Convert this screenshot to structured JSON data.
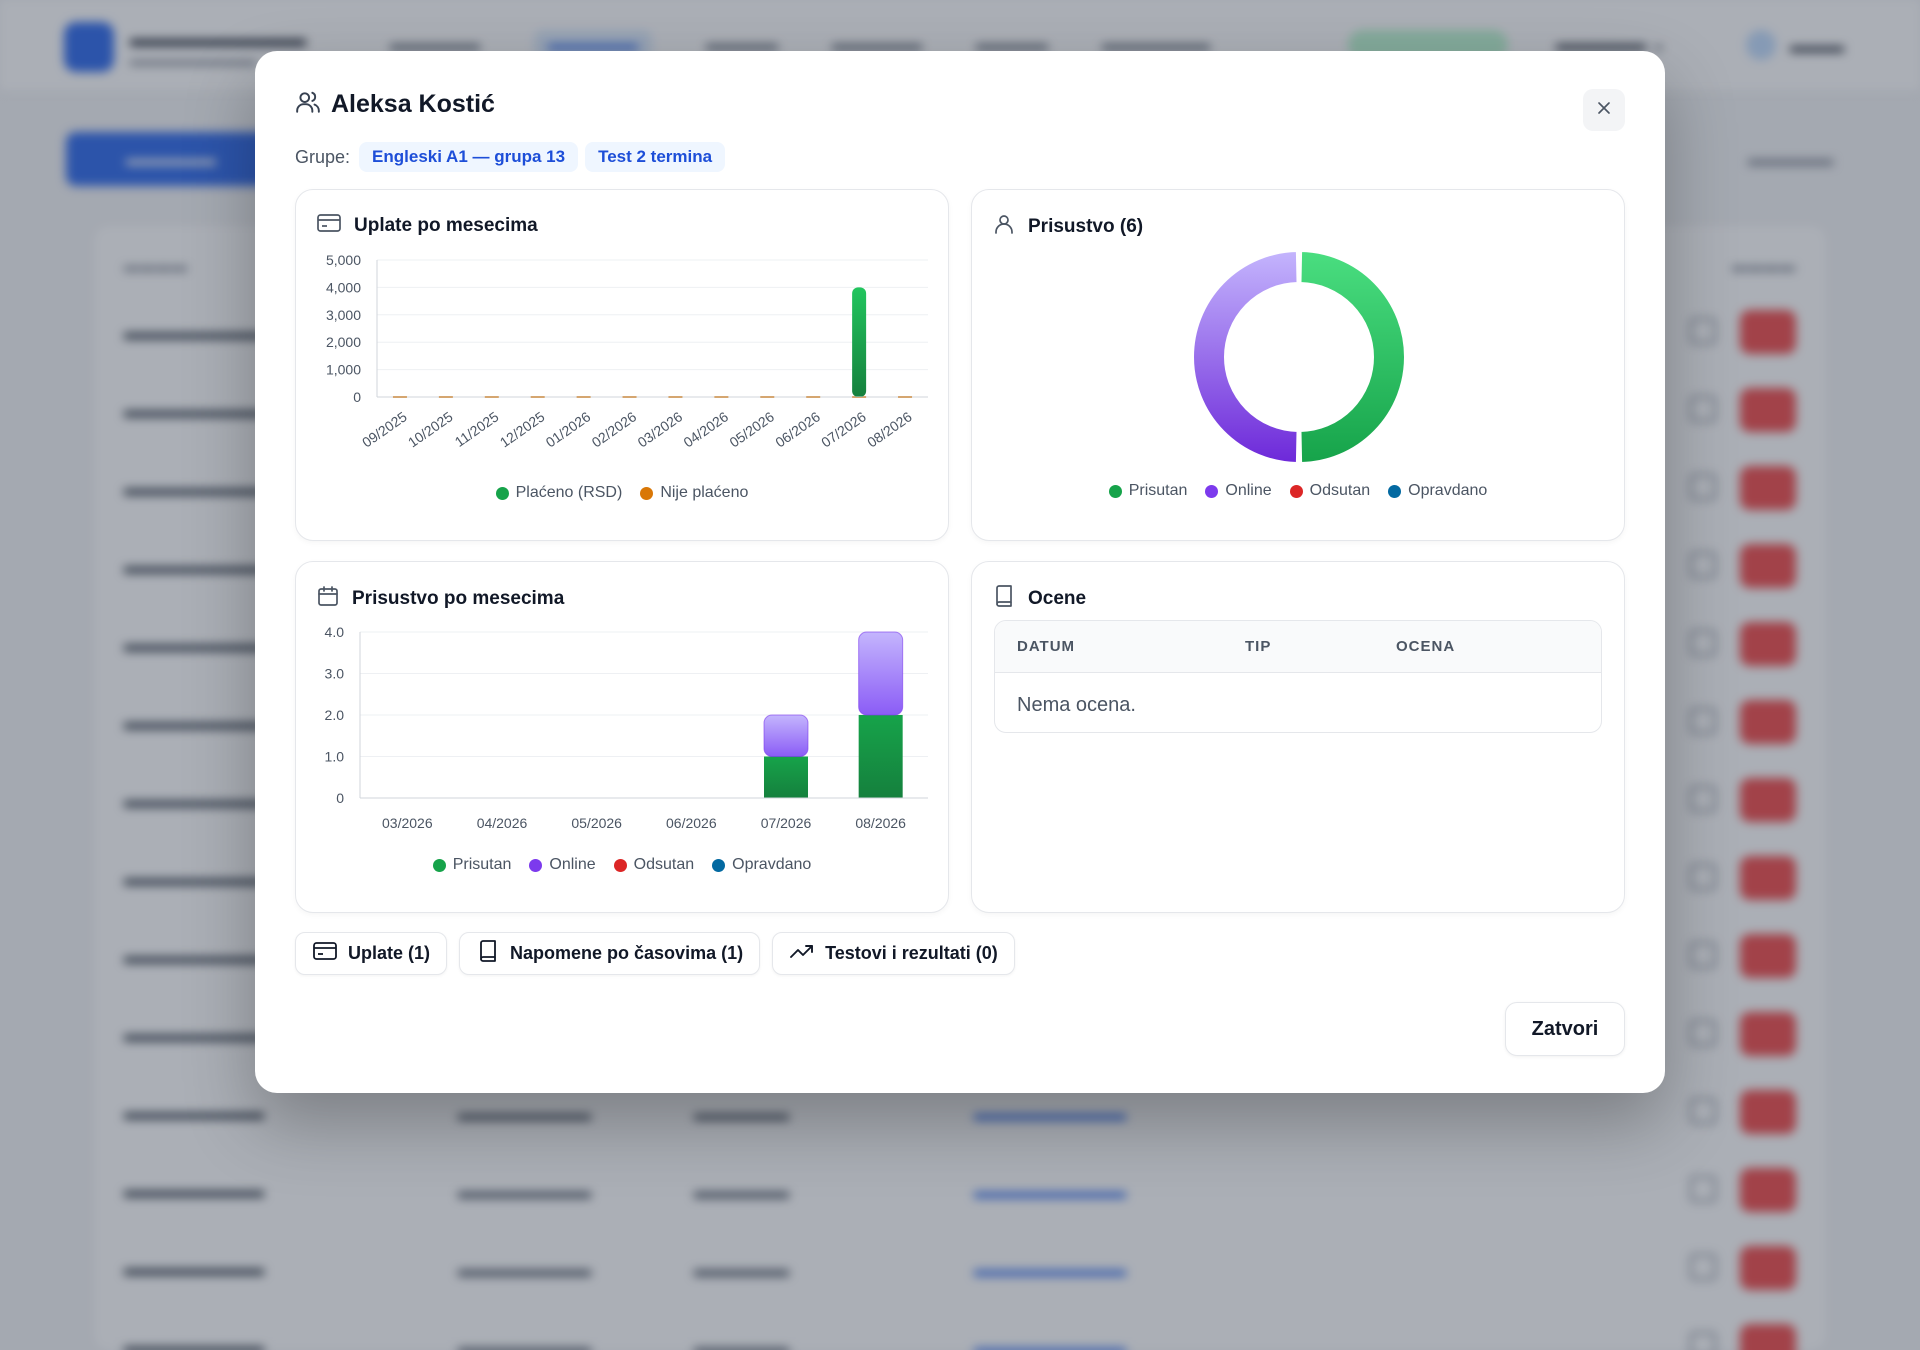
{
  "modal": {
    "title": "Aleksa Kostić",
    "groups_label": "Grupe:",
    "groups": [
      "Engleski A1 — grupa 13",
      "Test 2 termina"
    ],
    "close_label": "Zatvori"
  },
  "payments_card": {
    "title": "Uplate po mesecima",
    "legend": [
      {
        "label": "Plaćeno (RSD)",
        "color": "#16a34a"
      },
      {
        "label": "Nije plaćeno",
        "color": "#d97706"
      }
    ]
  },
  "attendance_card": {
    "title": "Prisustvo (6)",
    "legend": [
      {
        "label": "Prisutan",
        "color": "#16a34a"
      },
      {
        "label": "Online",
        "color": "#7c3aed"
      },
      {
        "label": "Odsutan",
        "color": "#dc2626"
      },
      {
        "label": "Opravdano",
        "color": "#0369a1"
      }
    ]
  },
  "monthly_attendance_card": {
    "title": "Prisustvo po mesecima",
    "legend": [
      {
        "label": "Prisutan",
        "color": "#16a34a"
      },
      {
        "label": "Online",
        "color": "#7c3aed"
      },
      {
        "label": "Odsutan",
        "color": "#dc2626"
      },
      {
        "label": "Opravdano",
        "color": "#0369a1"
      }
    ]
  },
  "grades_card": {
    "title": "Ocene",
    "columns": [
      "DATUM",
      "TIP",
      "OCENA"
    ],
    "empty_text": "Nema ocena."
  },
  "tabs": [
    {
      "label": "Uplate (1)",
      "icon": "credit-card-icon"
    },
    {
      "label": "Napomene po časovima (1)",
      "icon": "book-icon"
    },
    {
      "label": "Testovi i rezultati (0)",
      "icon": "trending-up-icon"
    }
  ],
  "chart_data": [
    {
      "type": "bar",
      "title": "Uplate po mesecima",
      "categories": [
        "09/2025",
        "10/2025",
        "11/2025",
        "12/2025",
        "01/2026",
        "02/2026",
        "03/2026",
        "04/2026",
        "05/2026",
        "06/2026",
        "07/2026",
        "08/2026"
      ],
      "series": [
        {
          "name": "Plaćeno (RSD)",
          "values": [
            0,
            0,
            0,
            0,
            0,
            0,
            0,
            0,
            0,
            0,
            4000,
            0
          ]
        },
        {
          "name": "Nije plaćeno",
          "values": [
            0,
            0,
            0,
            0,
            0,
            0,
            0,
            0,
            0,
            0,
            0,
            0
          ]
        }
      ],
      "yticks": [
        "0",
        "1,000",
        "2,000",
        "3,000",
        "4,000",
        "5,000"
      ],
      "ylim": [
        0,
        5000
      ],
      "legend": "bottom",
      "grid": true
    },
    {
      "type": "pie",
      "title": "Prisustvo (6)",
      "categories": [
        "Prisutan",
        "Online",
        "Odsutan",
        "Opravdano"
      ],
      "values": [
        3,
        3,
        0,
        0
      ],
      "donut": true,
      "legend": "bottom"
    },
    {
      "type": "bar",
      "stacked": true,
      "title": "Prisustvo po mesecima",
      "categories": [
        "03/2026",
        "04/2026",
        "05/2026",
        "06/2026",
        "07/2026",
        "08/2026"
      ],
      "series": [
        {
          "name": "Prisutan",
          "values": [
            0,
            0,
            0,
            0,
            1,
            2
          ]
        },
        {
          "name": "Online",
          "values": [
            0,
            0,
            0,
            0,
            1,
            2
          ]
        },
        {
          "name": "Odsutan",
          "values": [
            0,
            0,
            0,
            0,
            0,
            0
          ]
        },
        {
          "name": "Opravdano",
          "values": [
            0,
            0,
            0,
            0,
            0,
            0
          ]
        }
      ],
      "yticks": [
        "0",
        "1.0",
        "2.0",
        "3.0",
        "4.0"
      ],
      "ylim": [
        0,
        4
      ],
      "legend": "bottom",
      "grid": true
    }
  ]
}
